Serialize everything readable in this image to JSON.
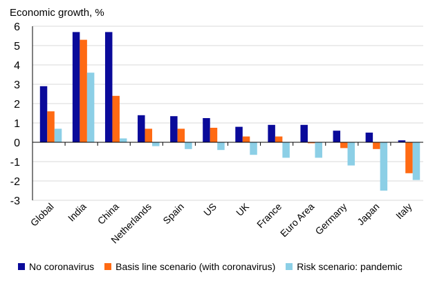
{
  "chart_data": {
    "type": "bar",
    "ylabel": "Economic growth, %",
    "ylim": [
      -3,
      6
    ],
    "yticks": [
      6,
      5,
      4,
      3,
      2,
      1,
      0,
      -1,
      -2,
      -3
    ],
    "grid": true,
    "categories": [
      "Global",
      "India",
      "China",
      "Netherlands",
      "Spain",
      "US",
      "UK",
      "France",
      "Euro Area",
      "Germany",
      "Japan",
      "Italy"
    ],
    "series": [
      {
        "name": "No coronavirus",
        "color": "#0a0a9a",
        "values": [
          2.9,
          5.7,
          5.7,
          1.4,
          1.35,
          1.25,
          0.8,
          0.9,
          0.9,
          0.6,
          0.5,
          0.1
        ]
      },
      {
        "name": "Basis line scenario (with coronavirus)",
        "color": "#ff6a13",
        "values": [
          1.6,
          5.3,
          2.4,
          0.7,
          0.7,
          0.75,
          0.3,
          0.3,
          -0.05,
          -0.3,
          -0.35,
          -1.6
        ]
      },
      {
        "name": "Risk scenario: pandemic",
        "color": "#8ccfe6",
        "values": [
          0.7,
          3.6,
          0.2,
          -0.2,
          -0.35,
          -0.4,
          -0.65,
          -0.8,
          -0.8,
          -1.2,
          -2.5,
          -1.95
        ]
      }
    ],
    "legend_position": "bottom"
  }
}
